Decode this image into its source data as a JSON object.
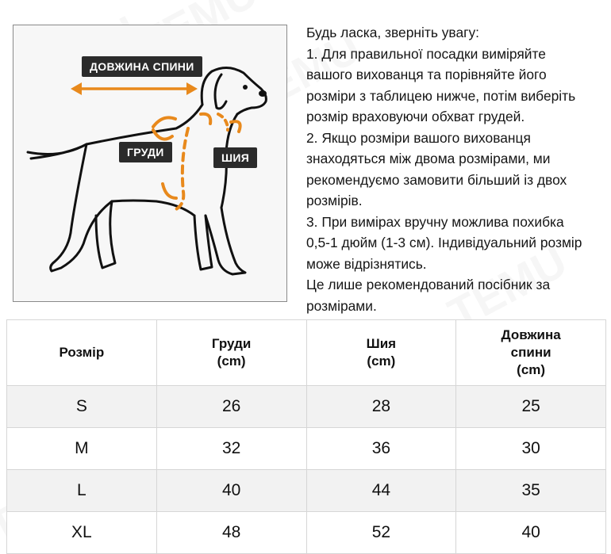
{
  "diagram": {
    "labels": {
      "back_length": "ДОВЖИНА СПИНИ",
      "chest": "ГРУДИ",
      "neck": "ШИЯ"
    },
    "colors": {
      "arrow": "#e8891c",
      "outline": "#111111",
      "label_bg": "#2b2b2b"
    }
  },
  "notes": {
    "line1": "Будь ласка, зверніть увагу:",
    "point1": "1. Для правильної посадки виміряйте\nвашого вихованця та порівняйте його\nрозміри з таблицею нижче, потім виберіть\nрозмір враховуючи обхват грудей.",
    "point2": "2. Якщо розміри вашого вихованця\nзнаходяться між двома розмірами, ми\nрекомендуємо замовити більший із двох\nрозмірів.",
    "point3": "3. При вимірах вручну можлива похибка\n0,5-1 дюйм (1-3 см). Індивідуальний розмір\nможе відрізнятись.",
    "closing": "Це лише рекомендований посібник за\nрозмірами."
  },
  "table": {
    "headers": [
      "Розмір",
      "Груди\n(cm)",
      "Шия\n(cm)",
      "Довжина\nспини\n(cm)"
    ],
    "rows": [
      [
        "S",
        "26",
        "28",
        "25"
      ],
      [
        "M",
        "32",
        "36",
        "30"
      ],
      [
        "L",
        "40",
        "44",
        "35"
      ],
      [
        "XL",
        "48",
        "52",
        "40"
      ]
    ]
  },
  "watermark": "TEMU"
}
